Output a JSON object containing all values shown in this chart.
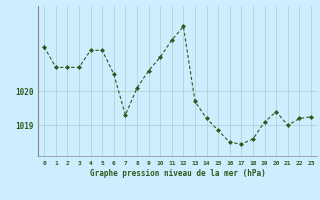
{
  "x": [
    0,
    1,
    2,
    3,
    4,
    5,
    6,
    7,
    8,
    9,
    10,
    11,
    12,
    13,
    14,
    15,
    16,
    17,
    18,
    19,
    20,
    21,
    22,
    23
  ],
  "y": [
    1021.3,
    1020.7,
    1020.7,
    1020.7,
    1021.2,
    1021.2,
    1020.5,
    1019.3,
    1020.1,
    1020.6,
    1021.0,
    1021.5,
    1021.9,
    1019.7,
    1019.2,
    1018.85,
    1018.5,
    1018.45,
    1018.6,
    1019.1,
    1019.4,
    1019.0,
    1019.2,
    1019.25
  ],
  "line_color": "#2d5a1b",
  "marker": "D",
  "marker_size": 2.0,
  "line_width": 0.8,
  "background_color": "#cceeff",
  "grid_color": "#aacccc",
  "ylabel_ticks": [
    1019,
    1020
  ],
  "xlabel": "Graphe pression niveau de la mer (hPa)",
  "xlim": [
    -0.5,
    23.5
  ],
  "ylim": [
    1018.1,
    1022.5
  ],
  "xtick_labels": [
    "0",
    "1",
    "2",
    "3",
    "4",
    "5",
    "6",
    "7",
    "8",
    "9",
    "10",
    "11",
    "12",
    "13",
    "14",
    "15",
    "16",
    "17",
    "18",
    "19",
    "20",
    "21",
    "22",
    "23"
  ],
  "spine_color": "#888888",
  "font_color": "#2d5a1b"
}
